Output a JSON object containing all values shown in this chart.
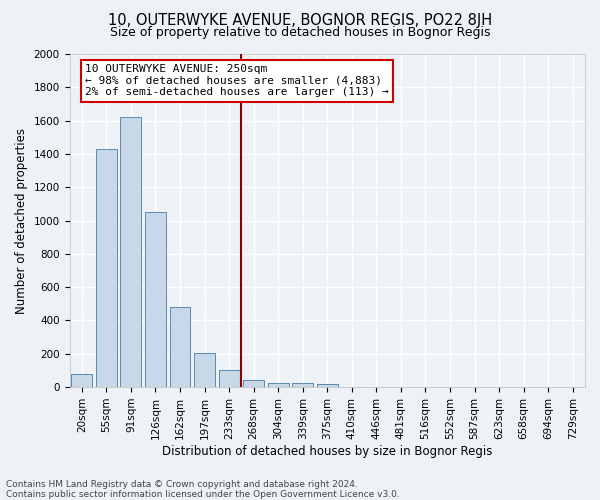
{
  "title": "10, OUTERWYKE AVENUE, BOGNOR REGIS, PO22 8JH",
  "subtitle": "Size of property relative to detached houses in Bognor Regis",
  "xlabel": "Distribution of detached houses by size in Bognor Regis",
  "ylabel": "Number of detached properties",
  "footnote1": "Contains HM Land Registry data © Crown copyright and database right 2024.",
  "footnote2": "Contains public sector information licensed under the Open Government Licence v3.0.",
  "bins": [
    "20sqm",
    "55sqm",
    "91sqm",
    "126sqm",
    "162sqm",
    "197sqm",
    "233sqm",
    "268sqm",
    "304sqm",
    "339sqm",
    "375sqm",
    "410sqm",
    "446sqm",
    "481sqm",
    "516sqm",
    "552sqm",
    "587sqm",
    "623sqm",
    "658sqm",
    "694sqm",
    "729sqm"
  ],
  "values": [
    80,
    1430,
    1620,
    1050,
    480,
    205,
    100,
    42,
    27,
    22,
    17,
    0,
    0,
    0,
    0,
    0,
    0,
    0,
    0,
    0,
    0
  ],
  "bar_color": "#c8d8e8",
  "bar_edge_color": "#5a8ab0",
  "vline_color": "#8b0000",
  "annotation_text": "10 OUTERWYKE AVENUE: 250sqm\n← 98% of detached houses are smaller (4,883)\n2% of semi-detached houses are larger (113) →",
  "annotation_box_color": "#ffffff",
  "annotation_box_edge": "#cc0000",
  "ylim": [
    0,
    2000
  ],
  "yticks": [
    0,
    200,
    400,
    600,
    800,
    1000,
    1200,
    1400,
    1600,
    1800,
    2000
  ],
  "background_color": "#eef2f7",
  "grid_color": "#ffffff",
  "title_fontsize": 10.5,
  "subtitle_fontsize": 9,
  "axis_label_fontsize": 8.5,
  "tick_fontsize": 7.5,
  "annotation_fontsize": 8,
  "footnote_fontsize": 6.5
}
